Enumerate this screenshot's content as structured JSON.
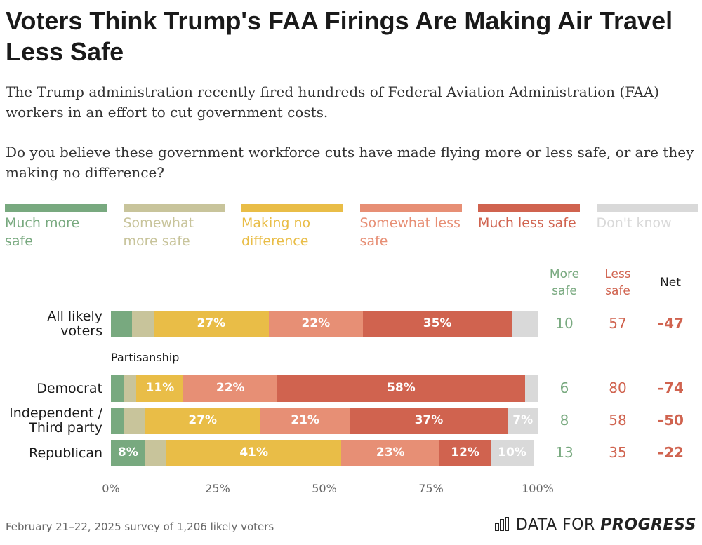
{
  "chart_data": {
    "type": "stacked-bar",
    "title": "Voters Think Trump's FAA Firings Are Making Air Travel Less Safe",
    "subtitle": "The Trump administration recently fired hundreds of Federal Aviation Administration (FAA) workers in an effort to cut government costs.",
    "question": "Do you believe these government workforce cuts have made flying more or less safe, or are they making no difference?",
    "group_label": "Partisanship",
    "categories": [
      "All likely voters",
      "Democrat",
      "Independent / Third party",
      "Republican"
    ],
    "series": [
      {
        "name": "Much more safe",
        "color": "#78a97f",
        "values": [
          5,
          3,
          3,
          8
        ],
        "value_labels": [
          null,
          null,
          null,
          "8%"
        ]
      },
      {
        "name": "Somewhat more safe",
        "color": "#c8c49b",
        "values": [
          5,
          3,
          5,
          5
        ],
        "value_labels": [
          null,
          null,
          null,
          null
        ]
      },
      {
        "name": "Making no difference",
        "color": "#e9bd47",
        "values": [
          27,
          11,
          27,
          41
        ],
        "value_labels": [
          "27%",
          "11%",
          "27%",
          "41%"
        ]
      },
      {
        "name": "Somewhat less safe",
        "color": "#e78f75",
        "values": [
          22,
          22,
          21,
          23
        ],
        "value_labels": [
          "22%",
          "22%",
          "21%",
          "23%"
        ]
      },
      {
        "name": "Much less safe",
        "color": "#d0634f",
        "values": [
          35,
          58,
          37,
          12
        ],
        "value_labels": [
          "35%",
          "58%",
          "37%",
          "12%"
        ]
      },
      {
        "name": "Don't know",
        "color": "#d9d9d9",
        "values": [
          6,
          3,
          7,
          10
        ],
        "value_labels": [
          null,
          null,
          "7%",
          "10%"
        ]
      }
    ],
    "xlim": [
      0,
      100
    ],
    "xticks": [
      {
        "value": 0,
        "label": "0%"
      },
      {
        "value": 25,
        "label": "25%"
      },
      {
        "value": 50,
        "label": "50%"
      },
      {
        "value": 75,
        "label": "75%"
      },
      {
        "value": 100,
        "label": "100%"
      }
    ],
    "columns": [
      {
        "name": "More safe",
        "color": "#78a97f",
        "values": [
          10,
          6,
          8,
          13
        ]
      },
      {
        "name": "Less safe",
        "color": "#d0634f",
        "values": [
          57,
          80,
          58,
          35
        ]
      },
      {
        "name": "Net",
        "color": "#d0634f",
        "header_color": "#1a1a1a",
        "bold": true,
        "values": [
          -47,
          -74,
          -50,
          -22
        ],
        "value_labels": [
          "–47",
          "–74",
          "–50",
          "–22"
        ]
      }
    ],
    "source": "February 21–22, 2025 survey of 1,206 likely voters",
    "logo": {
      "text": "DATA FOR",
      "emphasis": "PROGRESS"
    }
  }
}
